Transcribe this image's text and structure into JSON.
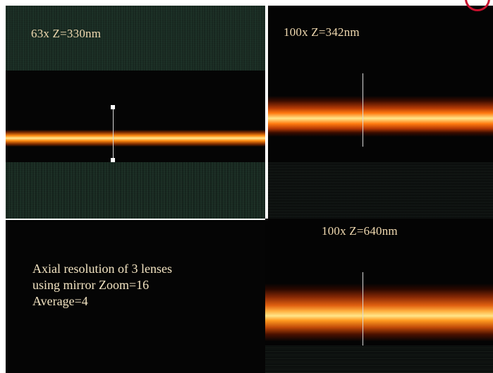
{
  "panels": [
    {
      "label": "63x Z=330nm"
    },
    {
      "label": "100x Z=342nm"
    },
    {
      "label": "100x Z=640nm"
    }
  ],
  "caption": {
    "line1": "Axial resolution of 3 lenses",
    "line2": "using mirror Zoom=16",
    "line3": "Average=4"
  },
  "colors": {
    "background": "#050505",
    "noise": "#2e5a44",
    "stripe_core": "#ffe68a",
    "stripe_glow": "#ff7a10",
    "label_text": "#f0d9b0",
    "logo_ring": "#c8102e"
  }
}
